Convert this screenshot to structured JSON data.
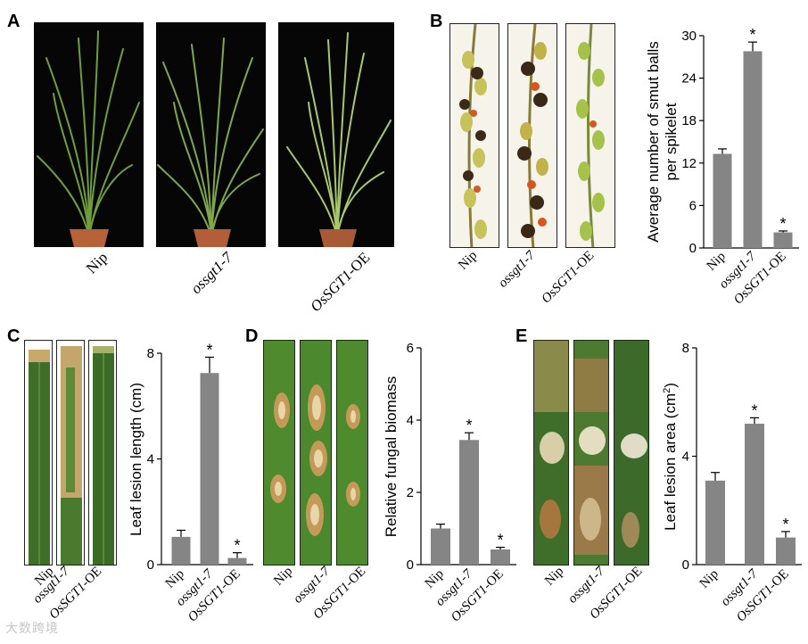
{
  "panels": {
    "A": {
      "letter": "A",
      "labels": [
        {
          "pre": "Nip",
          "it": "",
          "post": ""
        },
        {
          "pre": "",
          "it": "ossgt1-7",
          "post": ""
        },
        {
          "pre": "",
          "it": "OsSGT1",
          "post": "-OE"
        }
      ]
    },
    "B": {
      "letter": "B",
      "labels": [
        {
          "pre": "Nip",
          "it": "",
          "post": ""
        },
        {
          "pre": "",
          "it": "ossgt1-7",
          "post": ""
        },
        {
          "pre": "",
          "it": "OsSGT1",
          "post": "-OE"
        }
      ]
    },
    "C": {
      "letter": "C",
      "labels": [
        {
          "pre": "Nip",
          "it": "",
          "post": ""
        },
        {
          "pre": "",
          "it": "ossgt1-7",
          "post": ""
        },
        {
          "pre": "",
          "it": "OsSGT1",
          "post": "-OE"
        }
      ]
    },
    "D": {
      "letter": "D",
      "labels": [
        {
          "pre": "Nip",
          "it": "",
          "post": ""
        },
        {
          "pre": "",
          "it": "ossgt1-7",
          "post": ""
        },
        {
          "pre": "",
          "it": "OsSGT1",
          "post": "-OE"
        }
      ]
    },
    "E": {
      "letter": "E",
      "labels": [
        {
          "pre": "Nip",
          "it": "",
          "post": ""
        },
        {
          "pre": "",
          "it": "ossgt1-7",
          "post": ""
        },
        {
          "pre": "",
          "it": "OsSGT1",
          "post": "-OE"
        }
      ]
    }
  },
  "watermark": "大数跨境",
  "colors": {
    "bar": "#858585",
    "error_bar": "#000000",
    "axis": "#000000"
  },
  "chart_data": [
    {
      "id": "B",
      "type": "bar",
      "categories": [
        {
          "pre": "Nip",
          "it": "",
          "post": ""
        },
        {
          "pre": "",
          "it": "ossgt1-7",
          "post": ""
        },
        {
          "pre": "",
          "it": "OsSGT1",
          "post": "-OE"
        }
      ],
      "values": [
        13.3,
        27.8,
        2.2
      ],
      "errors": [
        0.7,
        1.3,
        0.2
      ],
      "annotations": [
        "",
        "*",
        "*"
      ],
      "ylabel": [
        "Average number of smut balls",
        "per spikelet"
      ],
      "ylim": [
        0,
        30
      ],
      "yticks": [
        0,
        6,
        12,
        18,
        24,
        30
      ],
      "grid": false,
      "legend": "none"
    },
    {
      "id": "C",
      "type": "bar",
      "categories": [
        {
          "pre": "Nip",
          "it": "",
          "post": ""
        },
        {
          "pre": "",
          "it": "ossgt1-7",
          "post": ""
        },
        {
          "pre": "",
          "it": "OsSGT1",
          "post": "-OE"
        }
      ],
      "values": [
        1.05,
        7.25,
        0.25
      ],
      "errors": [
        0.25,
        0.6,
        0.2
      ],
      "annotations": [
        "",
        "*",
        "*"
      ],
      "ylabel": [
        "Leaf lesion length (cm)"
      ],
      "ylim": [
        0,
        8
      ],
      "yticks": [
        0,
        4,
        8
      ],
      "grid": false,
      "legend": "none"
    },
    {
      "id": "D",
      "type": "bar",
      "categories": [
        {
          "pre": "Nip",
          "it": "",
          "post": ""
        },
        {
          "pre": "",
          "it": "ossgt1-7",
          "post": ""
        },
        {
          "pre": "",
          "it": "OsSGT1",
          "post": "-OE"
        }
      ],
      "values": [
        1.0,
        3.45,
        0.42
      ],
      "errors": [
        0.12,
        0.2,
        0.06
      ],
      "annotations": [
        "",
        "*",
        "*"
      ],
      "ylabel": [
        "Relative fungal biomass"
      ],
      "ylim": [
        0,
        6
      ],
      "yticks": [
        0,
        2,
        4,
        6
      ],
      "grid": false,
      "legend": "none"
    },
    {
      "id": "E",
      "type": "bar",
      "categories": [
        {
          "pre": "Nip",
          "it": "",
          "post": ""
        },
        {
          "pre": "",
          "it": "ossgt1-7",
          "post": ""
        },
        {
          "pre": "",
          "it": "OsSGT1",
          "post": "-OE"
        }
      ],
      "values": [
        3.1,
        5.2,
        1.0
      ],
      "errors": [
        0.3,
        0.22,
        0.22
      ],
      "annotations": [
        "",
        "*",
        "*"
      ],
      "ylabel": [
        "Leaf lesion area (cm",
        "2",
        ")"
      ],
      "ylim": [
        0,
        8
      ],
      "yticks": [
        0,
        4,
        8
      ],
      "grid": false,
      "legend": "none"
    }
  ]
}
